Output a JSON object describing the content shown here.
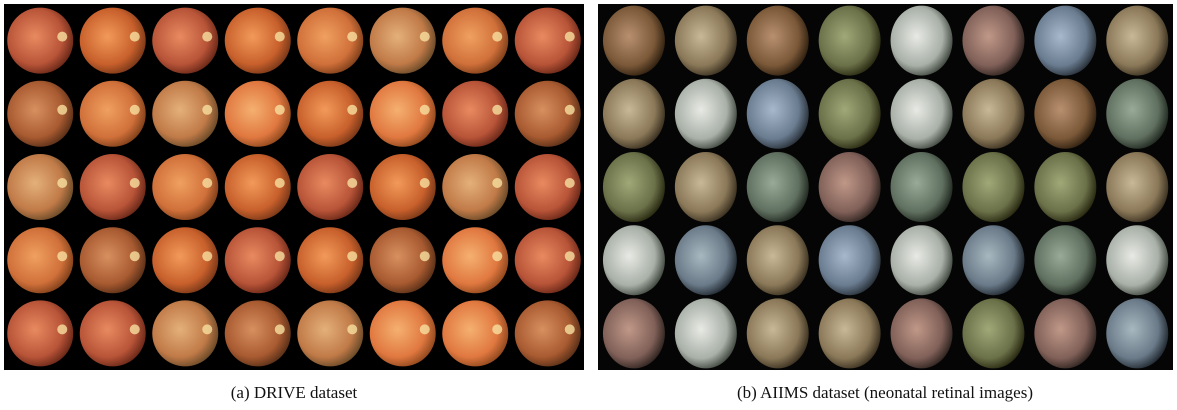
{
  "panels": [
    {
      "caption": "(a) DRIVE dataset"
    },
    {
      "caption": "(b) AIIMS dataset (neonatal retinal images)"
    }
  ]
}
